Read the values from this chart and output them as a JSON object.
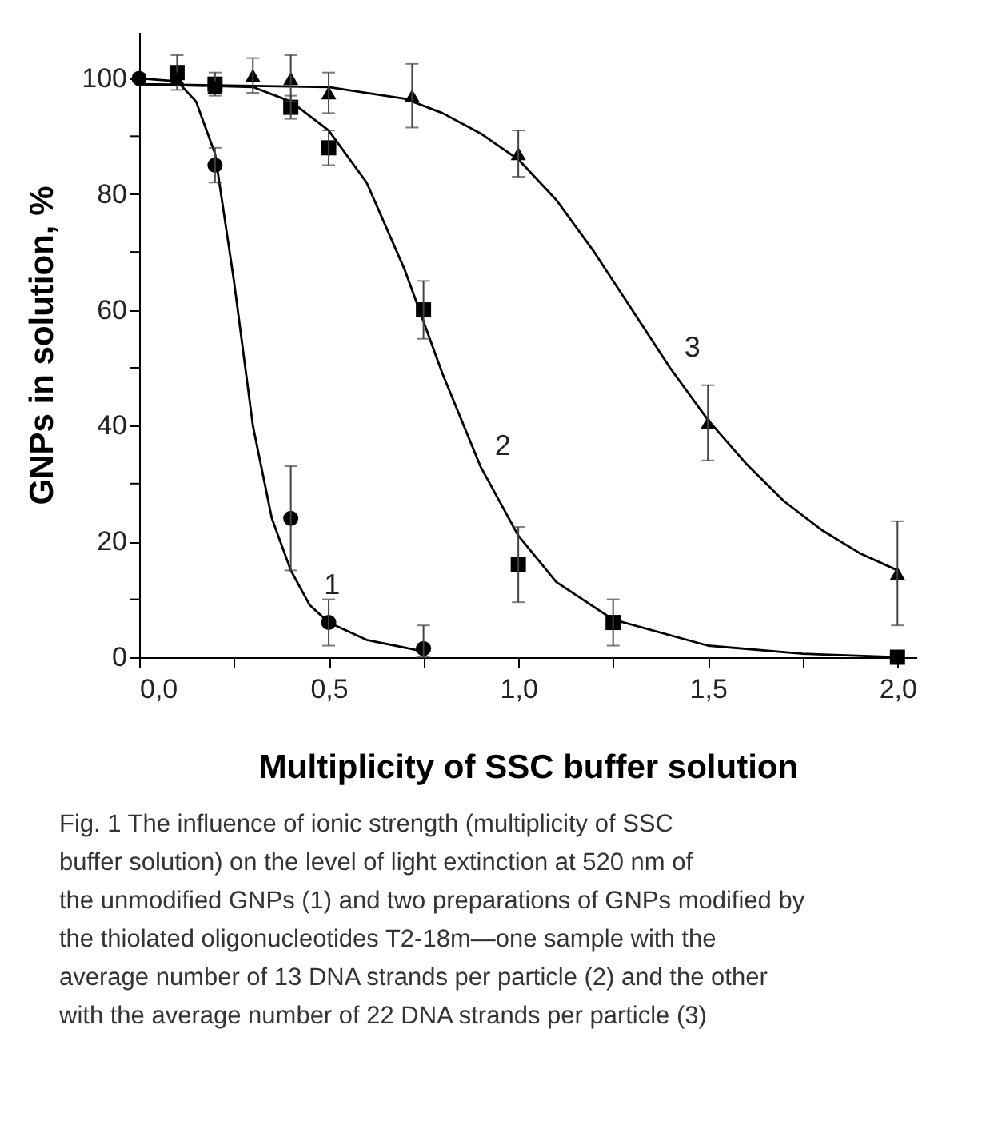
{
  "chart_data": {
    "type": "scatter",
    "xlabel": "Multiplicity of SSC buffer solution",
    "ylabel": "GNPs in solution, %",
    "xlim": [
      0,
      2.05
    ],
    "ylim": [
      0,
      108
    ],
    "xticks": [
      {
        "value": 0,
        "label": "0,0"
      },
      {
        "value": 0.25,
        "label": null
      },
      {
        "value": 0.5,
        "label": "0,5"
      },
      {
        "value": 0.75,
        "label": null
      },
      {
        "value": 1,
        "label": "1,0"
      },
      {
        "value": 1.25,
        "label": null
      },
      {
        "value": 1.5,
        "label": "1,5"
      },
      {
        "value": 1.75,
        "label": null
      },
      {
        "value": 2,
        "label": "2,0"
      }
    ],
    "yticks": [
      0,
      {
        "value": 10,
        "label": null
      },
      20,
      {
        "value": 30,
        "label": null
      },
      40,
      {
        "value": 50,
        "label": null
      },
      60,
      {
        "value": 70,
        "label": null
      },
      80,
      {
        "value": 90,
        "label": null
      },
      100
    ],
    "grid": false,
    "series": [
      {
        "type": "line",
        "color": "#000000",
        "marker": "none",
        "line_style": "solid",
        "x": [
          0,
          0.1,
          0.15,
          0.2,
          0.25,
          0.3,
          0.35,
          0.4,
          0.45,
          0.5,
          0.6,
          0.75
        ],
        "values": [
          100,
          99.5,
          96,
          87,
          65,
          40,
          24,
          15,
          9,
          6,
          3,
          1
        ]
      },
      {
        "type": "line",
        "color": "#000000",
        "marker": "none",
        "line_style": "solid",
        "x": [
          0,
          0.3,
          0.4,
          0.5,
          0.6,
          0.7,
          0.8,
          0.9,
          1.0,
          1.1,
          1.25,
          1.5,
          1.75,
          2.0
        ],
        "values": [
          99,
          98.5,
          96,
          91,
          82,
          67,
          49,
          33,
          21,
          13,
          6.5,
          2,
          0.6,
          0
        ]
      },
      {
        "type": "line",
        "color": "#000000",
        "marker": "none",
        "line_style": "solid",
        "x": [
          0,
          0.5,
          0.7,
          0.8,
          0.9,
          1.0,
          1.1,
          1.2,
          1.3,
          1.4,
          1.5,
          1.6,
          1.7,
          1.8,
          1.9,
          2.0
        ],
        "values": [
          99,
          98.5,
          96.5,
          94,
          90.5,
          86,
          79,
          70,
          60,
          50,
          41,
          33.5,
          27,
          22,
          18,
          15
        ]
      },
      {
        "color": "#000000",
        "marker": "circle",
        "x": [
          0,
          0.1,
          0.2,
          0.4,
          0.5,
          0.75
        ],
        "values": [
          100,
          null,
          85,
          24,
          6,
          1.5
        ],
        "errors": [
          null,
          null,
          3,
          9,
          4,
          [
            0,
            5.5
          ]
        ]
      },
      {
        "color": "#000000",
        "marker": "square",
        "x": [
          0.1,
          0.2,
          0.4,
          0.5,
          0.75,
          1.0,
          1.25,
          2.0
        ],
        "values": [
          101,
          99,
          95,
          88,
          60,
          16,
          6,
          0
        ],
        "errors": [
          3,
          2,
          2,
          3,
          5,
          6.5,
          4,
          null
        ]
      },
      {
        "color": "#000000",
        "marker": "triangle",
        "x": [
          0.1,
          0.2,
          0.3,
          0.4,
          0.5,
          0.72,
          1.0,
          1.5,
          2.0
        ],
        "values": [
          100,
          98.5,
          100.5,
          100,
          97.5,
          97,
          87,
          40.5,
          14.5
        ],
        "errors": [
          null,
          null,
          3,
          4,
          3.5,
          5.5,
          4,
          6.5,
          9
        ]
      }
    ],
    "annotations": [
      {
        "text": "1",
        "x": 0.45,
        "y": 9
      },
      {
        "text": "2",
        "x": 0.9,
        "y": 33
      },
      {
        "text": "3",
        "x": 1.4,
        "y": 50
      },
      "Fig. 1 The influence of ionic strength (multiplicity of SSC buffer solution) on the level of light extinction at 520 nm of the unmodified GNPs (1) and two preparations of GNPs modified by the thiolated oligonucleotides T2-18m—one sample with the average number of 13 DNA strands per particle (2) and the other with the average number of 22 DNA strands per particle (3)"
    ]
  }
}
